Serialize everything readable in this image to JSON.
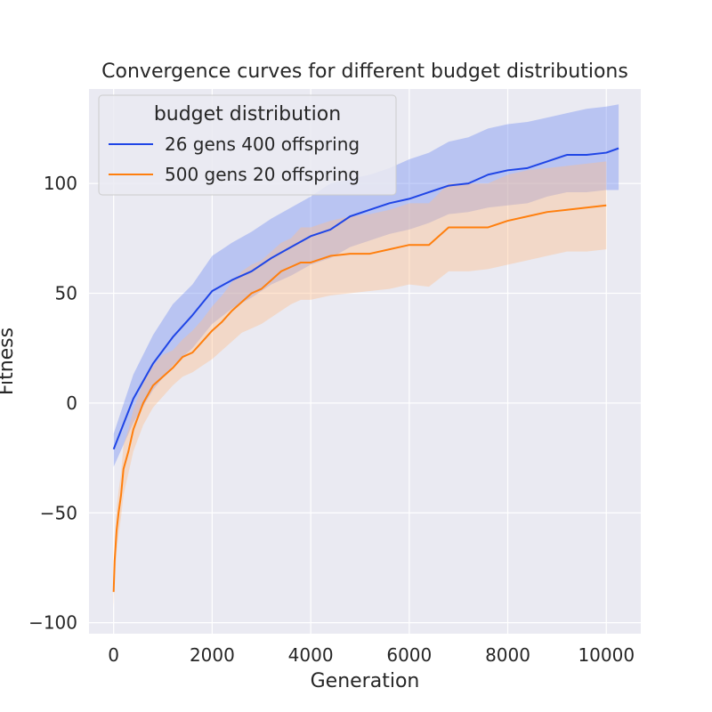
{
  "chart_data": {
    "type": "line",
    "title": "Convergence curves for different budget distributions",
    "xlabel": "Generation",
    "ylabel": "Fitness",
    "xlim": [
      -500,
      10700
    ],
    "ylim": [
      -105,
      143
    ],
    "x_ticks": [
      0,
      2000,
      4000,
      6000,
      8000,
      10000
    ],
    "x_tick_labels": [
      "0",
      "2000",
      "4000",
      "6000",
      "8000",
      "10000"
    ],
    "y_ticks": [
      -100,
      -50,
      0,
      50,
      100
    ],
    "y_tick_labels": [
      "−100",
      "−50",
      "0",
      "50",
      "100"
    ],
    "grid": true,
    "legend": {
      "title": "budget distribution",
      "placement": "top-left"
    },
    "series": [
      {
        "name": "26 gens 400 offspring",
        "color": "#1f45e6",
        "band_color": "#7f97f2",
        "x": [
          0,
          400,
          800,
          1200,
          1600,
          2000,
          2400,
          2800,
          3200,
          3600,
          4000,
          4400,
          4800,
          5200,
          5600,
          6000,
          6400,
          6800,
          7200,
          7600,
          8000,
          8400,
          8800,
          9200,
          9600,
          10000,
          10250
        ],
        "y": [
          -21,
          2,
          18,
          30,
          40,
          51,
          56,
          60,
          66,
          71,
          76,
          79,
          85,
          88,
          91,
          93,
          96,
          99,
          100,
          104,
          106,
          107,
          110,
          113,
          113,
          114,
          116
        ],
        "lower": [
          -29,
          -9,
          6,
          17,
          25,
          36,
          43,
          48,
          54,
          58,
          63,
          66,
          71,
          74,
          77,
          79,
          82,
          86,
          87,
          89,
          90,
          91,
          94,
          96,
          96,
          97,
          97
        ],
        "upper": [
          -14,
          13,
          31,
          45,
          54,
          67,
          73,
          78,
          84,
          89,
          94,
          100,
          102,
          104,
          107,
          111,
          114,
          119,
          121,
          125,
          127,
          128,
          130,
          132,
          134,
          135,
          136
        ]
      },
      {
        "name": "500 gens 20 offspring",
        "color": "#ff7f0e",
        "band_color": "#ffbf8a",
        "x": [
          0,
          20,
          60,
          100,
          150,
          200,
          300,
          400,
          600,
          800,
          1000,
          1200,
          1400,
          1600,
          1800,
          2000,
          2200,
          2400,
          2600,
          2800,
          3000,
          3200,
          3400,
          3600,
          3800,
          4000,
          4400,
          4800,
          5200,
          5600,
          6000,
          6400,
          6800,
          7200,
          7600,
          8000,
          8400,
          8800,
          9200,
          9600,
          10000
        ],
        "y": [
          -86,
          -72,
          -58,
          -50,
          -42,
          -30,
          -22,
          -12,
          0,
          8,
          12,
          16,
          21,
          23,
          28,
          33,
          37,
          42,
          46,
          50,
          52,
          56,
          60,
          62,
          64,
          64,
          67,
          68,
          68,
          70,
          72,
          72,
          80,
          80,
          80,
          83,
          85,
          87,
          88,
          89,
          90
        ],
        "lower": [
          -93,
          -82,
          -68,
          -60,
          -52,
          -42,
          -32,
          -22,
          -10,
          -2,
          3,
          8,
          12,
          14,
          17,
          20,
          24,
          28,
          32,
          34,
          36,
          39,
          42,
          45,
          47,
          47,
          49,
          50,
          51,
          52,
          54,
          53,
          60,
          60,
          61,
          63,
          65,
          67,
          69,
          69,
          70
        ],
        "upper": [
          -80,
          -62,
          -48,
          -40,
          -32,
          -19,
          -12,
          -3,
          9,
          17,
          22,
          24,
          29,
          33,
          38,
          44,
          49,
          55,
          60,
          63,
          65,
          69,
          73,
          75,
          80,
          80,
          83,
          85,
          86,
          88,
          91,
          91,
          100,
          100,
          100,
          104,
          106,
          107,
          108,
          109,
          110
        ]
      }
    ]
  }
}
